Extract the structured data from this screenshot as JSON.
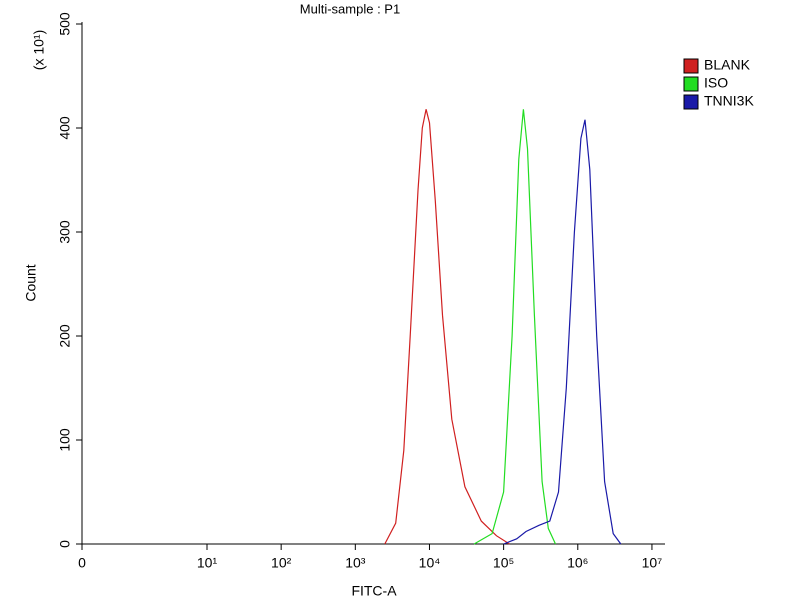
{
  "chart_data": {
    "type": "line",
    "title": "Multi-sample : P1",
    "x_label": "FITC-A",
    "y_label": "Count",
    "y_multiplier": "(x 10¹)",
    "xscale": "biexponential",
    "xlim": [
      0,
      15000000
    ],
    "xticks": [
      0,
      {
        "value": 10,
        "label": "10¹"
      },
      {
        "value": 100,
        "label": "10²"
      },
      {
        "value": 1000,
        "label": "10³"
      },
      {
        "value": 10000,
        "label": "10⁴"
      },
      {
        "value": 100000,
        "label": "10⁵"
      },
      {
        "value": 1000000,
        "label": "10⁶"
      },
      {
        "value": 10000000,
        "label": "10⁷"
      }
    ],
    "ylim": [
      0,
      500
    ],
    "yticks": [
      0,
      100,
      200,
      300,
      400,
      500
    ],
    "legend": "right",
    "series": [
      {
        "name": "BLANK",
        "color": "#d02020",
        "x": [
          2500,
          3500,
          4500,
          5500,
          7000,
          8000,
          9000,
          10000,
          12000,
          15000,
          20000,
          30000,
          50000,
          80000,
          120000
        ],
        "values": [
          0,
          20,
          90,
          200,
          340,
          400,
          418,
          405,
          330,
          220,
          120,
          55,
          22,
          8,
          0
        ]
      },
      {
        "name": "ISO",
        "color": "#22dd22",
        "x": [
          40000,
          70000,
          100000,
          130000,
          160000,
          185000,
          210000,
          260000,
          330000,
          400000,
          500000
        ],
        "values": [
          0,
          10,
          50,
          200,
          370,
          418,
          380,
          220,
          60,
          15,
          0
        ]
      },
      {
        "name": "TNNI3K",
        "color": "#1a1aa8",
        "x": [
          100000,
          150000,
          200000,
          300000,
          420000,
          550000,
          700000,
          900000,
          1100000,
          1250000,
          1450000,
          1800000,
          2300000,
          3000000,
          3800000
        ],
        "values": [
          0,
          5,
          12,
          18,
          22,
          50,
          150,
          300,
          390,
          408,
          360,
          200,
          60,
          10,
          0
        ]
      }
    ]
  }
}
